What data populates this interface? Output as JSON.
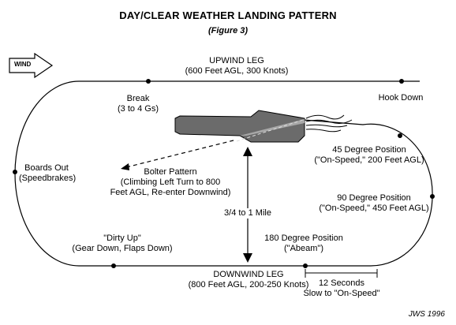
{
  "title": "DAY/CLEAR WEATHER LANDING PATTERN",
  "subtitle": "(Figure 3)",
  "wind_label": "WIND",
  "upwind": {
    "line1": "UPWIND LEG",
    "line2": "(600 Feet AGL, 300 Knots)"
  },
  "break_pt": {
    "line1": "Break",
    "line2": "(3 to 4 Gs)"
  },
  "hook_down": "Hook Down",
  "boards_out": {
    "line1": "Boards Out",
    "line2": "(Speedbrakes)"
  },
  "bolter": {
    "line1": "Bolter Pattern",
    "line2": "(Climbing Left Turn to 800",
    "line3": "Feet AGL, Re-enter Downwind)"
  },
  "pos45": {
    "line1": "45 Degree Position",
    "line2": "(\"On-Speed,\" 200 Feet AGL)"
  },
  "pos90": {
    "line1": "90 Degree Position",
    "line2": "(\"On-Speed,\" 450 Feet AGL)"
  },
  "distance": "3/4 to 1 Mile",
  "dirty_up": {
    "line1": "\"Dirty Up\"",
    "line2": "(Gear Down, Flaps Down)"
  },
  "pos180": {
    "line1": "180 Degree Position",
    "line2": "(\"Abeam\")"
  },
  "downwind": {
    "line1": "DOWNWIND LEG",
    "line2": "(800 Feet AGL, 200-250 Knots)"
  },
  "slow": {
    "line1": "12 Seconds",
    "line2": "Slow to \"On-Speed\""
  },
  "credit": "JWS 1996",
  "colors": {
    "line": "#000000",
    "ship": "#6b6b6b",
    "ship_light": "#a8a8a8",
    "background": "#ffffff"
  }
}
